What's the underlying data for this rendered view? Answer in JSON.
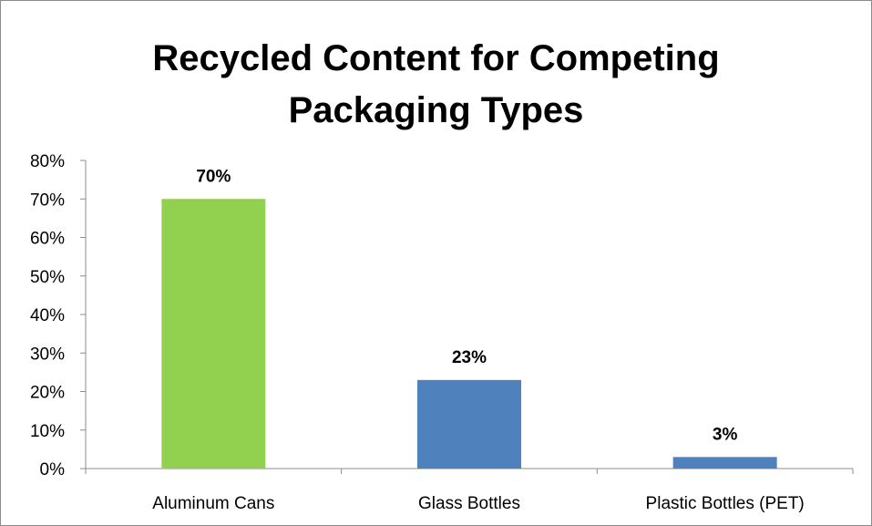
{
  "chart_data": {
    "type": "bar",
    "title_lines": [
      "Recycled Content for Competing",
      "Packaging Types"
    ],
    "categories": [
      "Aluminum Cans",
      "Glass Bottles",
      "Plastic Bottles (PET)"
    ],
    "values": [
      70,
      23,
      3
    ],
    "data_labels": [
      "70%",
      "23%",
      "3%"
    ],
    "bar_colors": [
      "#92d050",
      "#4f81bd",
      "#4f81bd"
    ],
    "ylim": [
      0,
      80
    ],
    "ytick_values": [
      0,
      10,
      20,
      30,
      40,
      50,
      60,
      70,
      80
    ],
    "ytick_labels": [
      "0%",
      "10%",
      "20%",
      "30%",
      "40%",
      "50%",
      "60%",
      "70%",
      "80%"
    ],
    "grid": false,
    "legend": "none"
  }
}
